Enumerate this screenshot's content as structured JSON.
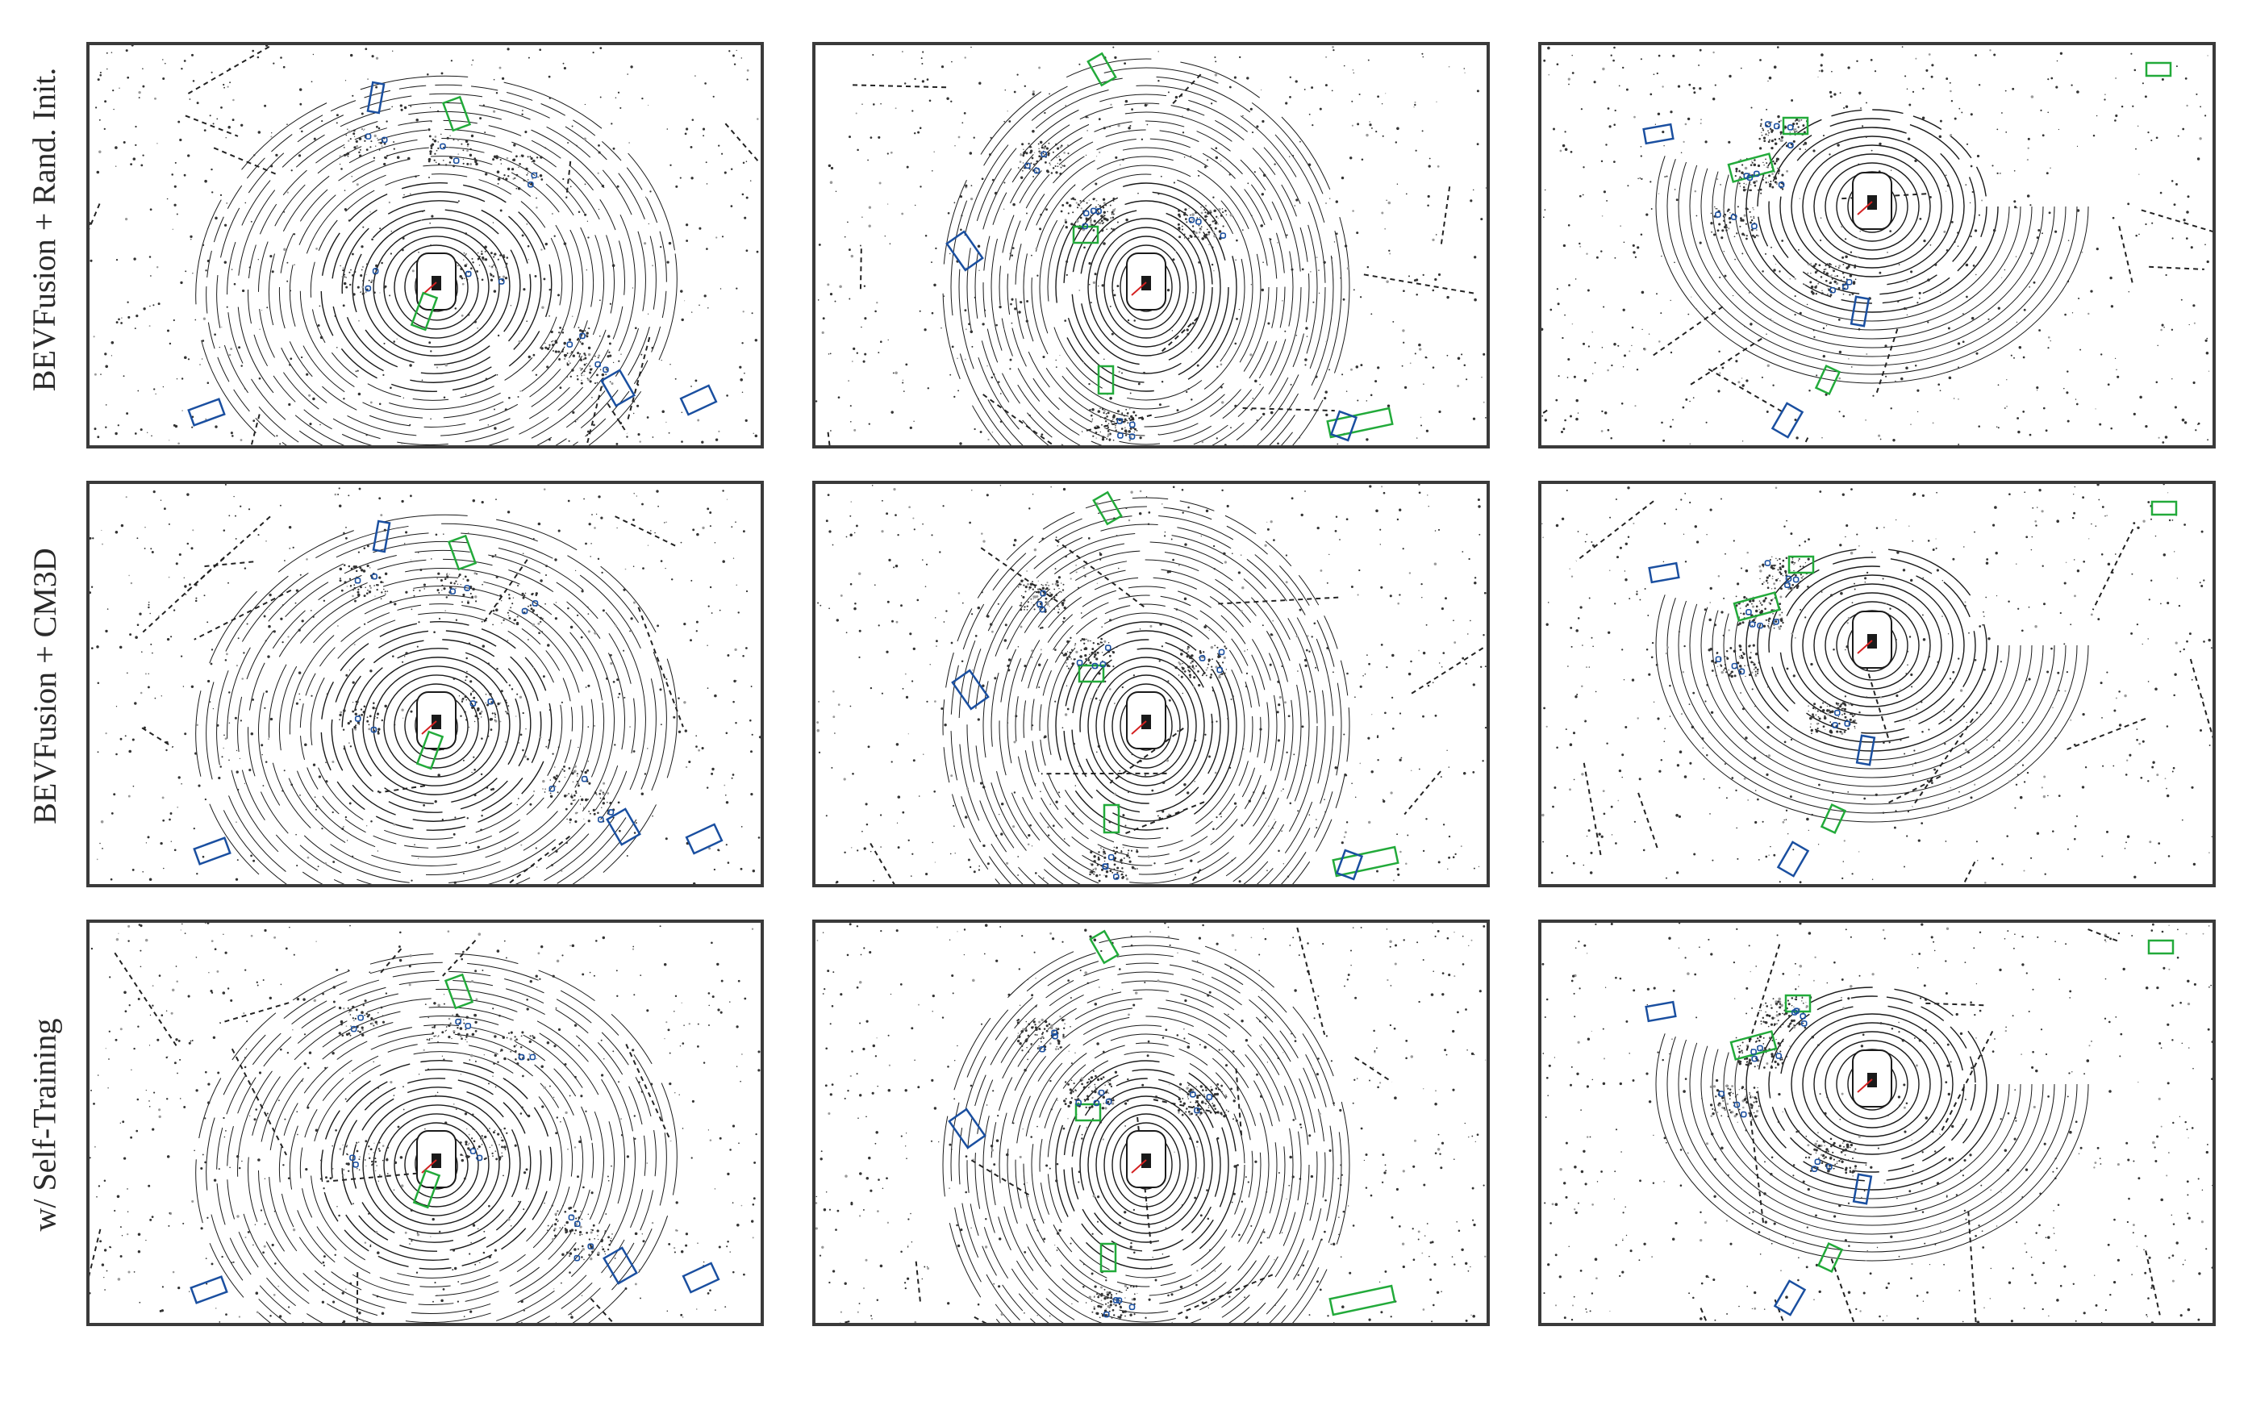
{
  "figure": {
    "rows": [
      {
        "label": "BEVFusion + Rand. Init."
      },
      {
        "label": "BEVFusion + CM3D"
      },
      {
        "label": "w/ Self-Training"
      }
    ],
    "columns": 3,
    "colors": {
      "ground_truth_box": "#22aa3a",
      "prediction_box": "#1a4fa0",
      "points": "#1a1a1a",
      "ego_heading": "#d42020"
    }
  }
}
